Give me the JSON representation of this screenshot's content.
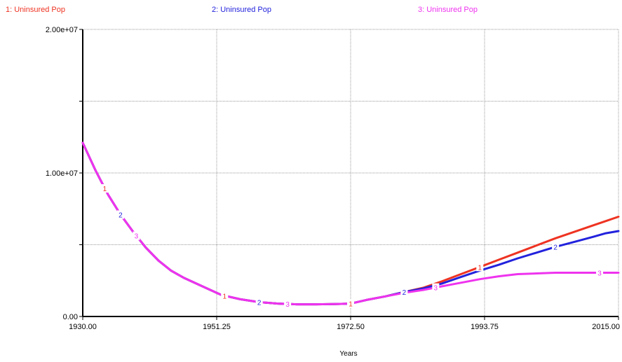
{
  "chart_data": {
    "type": "line",
    "xlabel": "Years",
    "ylabel": "",
    "xlim": [
      1930,
      2015
    ],
    "ylim": [
      0,
      20000000
    ],
    "grid": true,
    "legend_placement": "top",
    "x_ticks": [
      "1930.00",
      "1951.25",
      "1972.50",
      "1993.75",
      "2015.00"
    ],
    "x_tick_values": [
      1930,
      1951.25,
      1972.5,
      1993.75,
      2015
    ],
    "y_ticks": [
      "0.00",
      "1.00e+07",
      "2.00e+07"
    ],
    "y_tick_values": [
      0,
      10000000,
      20000000
    ],
    "x": [
      1930,
      1932,
      1934,
      1936,
      1938,
      1940,
      1942,
      1944,
      1946,
      1948,
      1950,
      1952,
      1955,
      1958,
      1961,
      1964,
      1967,
      1970,
      1972.5,
      1975,
      1978,
      1981,
      1984,
      1987,
      1990,
      1993,
      1996,
      1999,
      2002,
      2005,
      2008,
      2011,
      2013,
      2015
    ],
    "series": [
      {
        "name": "1: Uninsured Pop",
        "color": "#ee3322",
        "marker": "1",
        "values": [
          12100000,
          10200000,
          8500000,
          7100000,
          5900000,
          4800000,
          3900000,
          3200000,
          2700000,
          2300000,
          1900000,
          1500000,
          1200000,
          1000000,
          900000,
          850000,
          850000,
          870000,
          900000,
          1150000,
          1400000,
          1700000,
          2000000,
          2450000,
          2950000,
          3450000,
          3950000,
          4450000,
          4950000,
          5450000,
          5900000,
          6350000,
          6650000,
          6950000
        ]
      },
      {
        "name": "2: Uninsured Pop",
        "color": "#2222dd",
        "marker": "2",
        "values": [
          12100000,
          10200000,
          8500000,
          7100000,
          5900000,
          4800000,
          3900000,
          3200000,
          2700000,
          2300000,
          1900000,
          1500000,
          1200000,
          1000000,
          900000,
          850000,
          850000,
          870000,
          900000,
          1150000,
          1400000,
          1700000,
          1950000,
          2300000,
          2750000,
          3200000,
          3600000,
          4050000,
          4450000,
          4850000,
          5200000,
          5550000,
          5800000,
          5950000
        ]
      },
      {
        "name": "3: Uninsured Pop",
        "color": "#ee33ee",
        "marker": "3",
        "values": [
          12100000,
          10200000,
          8500000,
          7100000,
          5900000,
          4800000,
          3900000,
          3200000,
          2700000,
          2300000,
          1900000,
          1500000,
          1200000,
          1000000,
          900000,
          850000,
          850000,
          870000,
          900000,
          1150000,
          1400000,
          1650000,
          1850000,
          2100000,
          2350000,
          2600000,
          2800000,
          2950000,
          3000000,
          3050000,
          3050000,
          3050000,
          3050000,
          3050000
        ]
      }
    ]
  }
}
